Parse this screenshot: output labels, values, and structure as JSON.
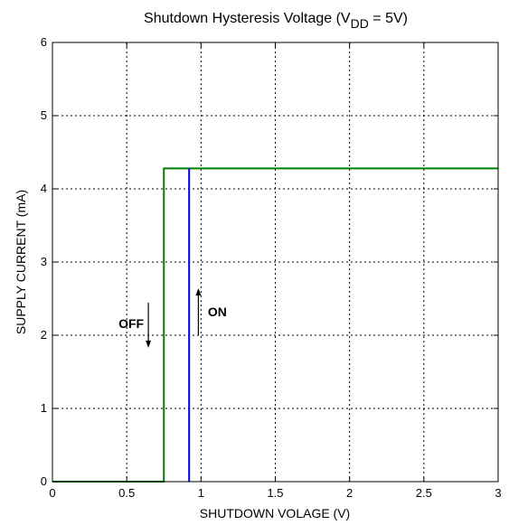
{
  "chart_data": {
    "type": "line",
    "title": "Shutdown Hysteresis Voltage (V",
    "title_subscript": "DD",
    "title_suffix": " = 5V)",
    "xlabel": "SHUTDOWN VOLAGE (V)",
    "ylabel": "SUPPLY CURRENT (mA)",
    "xlim": [
      0,
      3
    ],
    "ylim": [
      0,
      6
    ],
    "xticks": [
      0,
      0.5,
      1,
      1.5,
      2,
      2.5,
      3
    ],
    "xtick_labels": [
      "0",
      "0.5",
      "1",
      "1.5",
      "2",
      "2.5",
      "3"
    ],
    "yticks": [
      0,
      1,
      2,
      3,
      4,
      5,
      6
    ],
    "ytick_labels": [
      "0",
      "1",
      "2",
      "3",
      "4",
      "5",
      "6"
    ],
    "grid": true,
    "series": [
      {
        "color": "#007f00",
        "x": [
          0,
          0.75,
          0.75,
          3
        ],
        "y": [
          0,
          0,
          4.28,
          4.28
        ]
      },
      {
        "color": "#0000ff",
        "x": [
          0.92,
          0.92
        ],
        "y": [
          0,
          4.28
        ]
      }
    ],
    "annotations": [
      {
        "text": "OFF",
        "direction": "down",
        "x": 0.53,
        "y": 2.1
      },
      {
        "text": "ON",
        "direction": "up",
        "x": 1.11,
        "y": 2.26
      }
    ]
  }
}
